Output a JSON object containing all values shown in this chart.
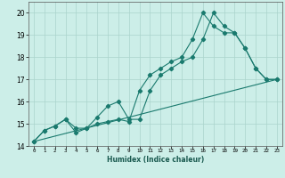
{
  "title": "",
  "xlabel": "Humidex (Indice chaleur)",
  "ylabel": "",
  "bg_color": "#cceee8",
  "grid_color": "#aad4cc",
  "line_color": "#1a7a6e",
  "xlim": [
    -0.5,
    23.5
  ],
  "ylim": [
    14.0,
    20.5
  ],
  "yticks": [
    14,
    15,
    16,
    17,
    18,
    19,
    20
  ],
  "xticks": [
    0,
    1,
    2,
    3,
    4,
    5,
    6,
    7,
    8,
    9,
    10,
    11,
    12,
    13,
    14,
    15,
    16,
    17,
    18,
    19,
    20,
    21,
    22,
    23
  ],
  "xtick_labels": [
    "0",
    "1",
    "2",
    "3",
    "4",
    "5",
    "6",
    "7",
    "8",
    "9",
    "10",
    "11",
    "12",
    "13",
    "14",
    "15",
    "16",
    "17",
    "18",
    "19",
    "20",
    "21",
    "22",
    "23"
  ],
  "line1_x": [
    0,
    1,
    2,
    3,
    4,
    5,
    6,
    7,
    8,
    9,
    10,
    11,
    12,
    13,
    14,
    15,
    16,
    17,
    18,
    19,
    20,
    21,
    22,
    23
  ],
  "line1_y": [
    14.2,
    14.7,
    14.9,
    15.2,
    14.8,
    14.8,
    15.3,
    15.8,
    16.0,
    15.2,
    15.2,
    16.5,
    17.2,
    17.5,
    17.8,
    18.0,
    18.8,
    20.0,
    19.4,
    19.1,
    18.4,
    17.5,
    17.0,
    17.0
  ],
  "line2_x": [
    0,
    1,
    2,
    3,
    4,
    5,
    6,
    7,
    8,
    9,
    10,
    11,
    12,
    13,
    14,
    15,
    16,
    17,
    18,
    19,
    20,
    21,
    22,
    23
  ],
  "line2_y": [
    14.2,
    14.7,
    14.9,
    15.2,
    14.6,
    14.8,
    15.0,
    15.1,
    15.2,
    15.1,
    16.5,
    17.2,
    17.5,
    17.8,
    18.0,
    18.8,
    20.0,
    19.4,
    19.1,
    19.1,
    18.4,
    17.5,
    17.0,
    17.0
  ],
  "line3_x": [
    0,
    23
  ],
  "line3_y": [
    14.2,
    17.0
  ]
}
